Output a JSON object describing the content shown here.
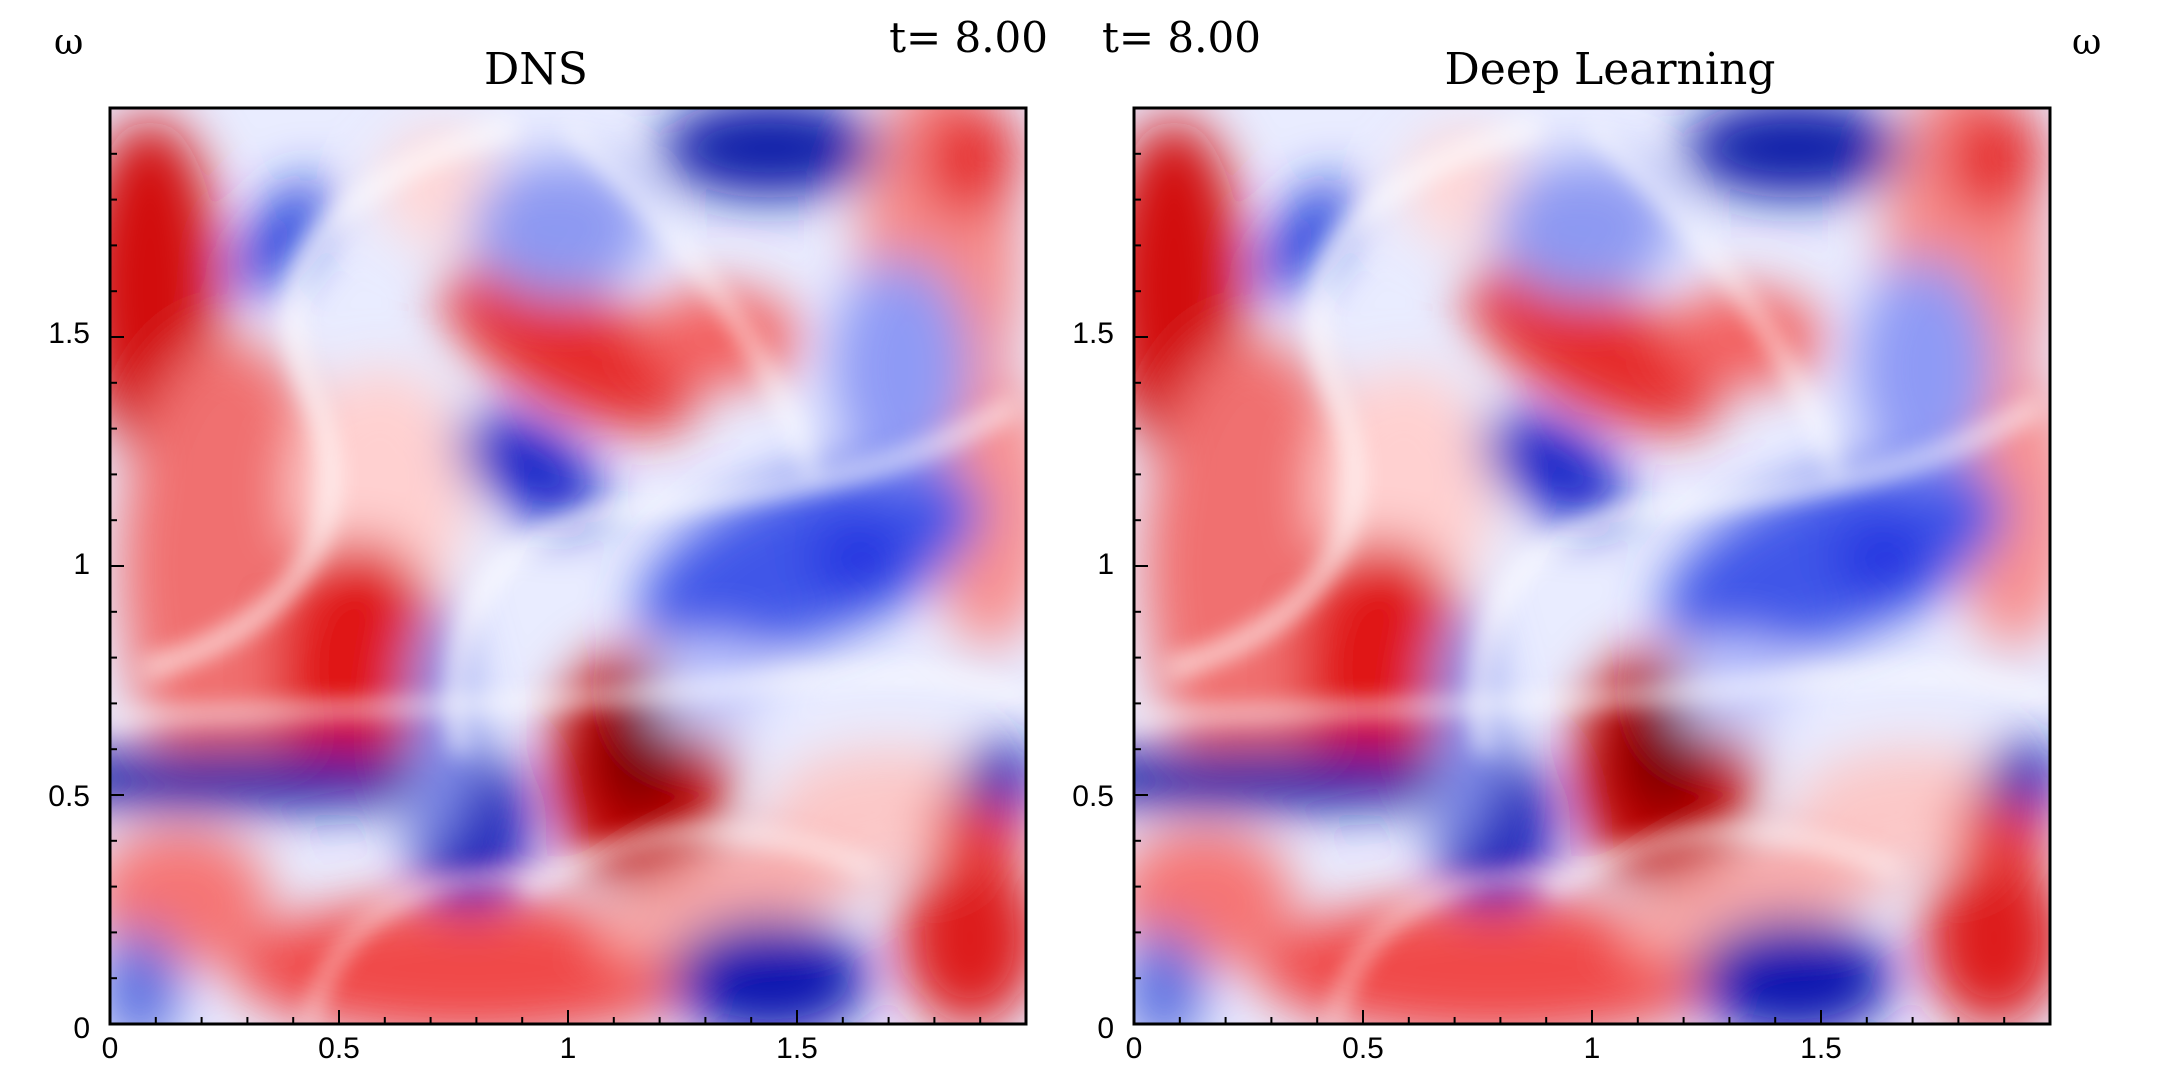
{
  "figure": {
    "colors": {
      "positive": "#d40000",
      "zero": "#ffffff",
      "negative": "#0018c8",
      "positive_extreme": "#7a0000"
    }
  },
  "chart_data": [
    {
      "type": "heatmap",
      "title": "DNS",
      "field_symbol": "ω",
      "time_label": "t= 8.00",
      "xlim": [
        0,
        2
      ],
      "ylim": [
        0,
        2
      ],
      "x_ticks": [
        0,
        0.5,
        1,
        1.5
      ],
      "y_ticks": [
        0,
        0.5,
        1,
        1.5
      ],
      "x_tick_labels": [
        "0",
        "0.5",
        "1",
        "1.5"
      ],
      "y_tick_labels": [
        "0",
        "0.5",
        "1",
        "1.5"
      ],
      "grid": false,
      "colormap": "blue-white-red"
    },
    {
      "type": "heatmap",
      "title": "Deep Learning",
      "field_symbol": "ω",
      "time_label": "t= 8.00",
      "xlim": [
        0,
        2
      ],
      "ylim": [
        0,
        2
      ],
      "x_ticks": [
        0,
        0.5,
        1,
        1.5
      ],
      "y_ticks": [
        0,
        0.5,
        1,
        1.5
      ],
      "x_tick_labels": [
        "0",
        "0.5",
        "1",
        "1.5"
      ],
      "y_tick_labels": [
        "0",
        "0.5",
        "1",
        "1.5"
      ],
      "grid": false,
      "colormap": "blue-white-red"
    }
  ]
}
